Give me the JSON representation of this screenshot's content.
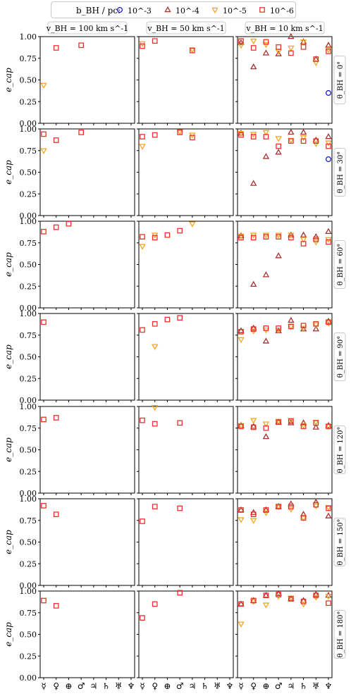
{
  "legend": {
    "title": "b_BH / pc:",
    "entries": [
      {
        "label": "10^{-3}",
        "marker": "circle",
        "color": "#1f1fcc"
      },
      {
        "label": "10^{-4}",
        "marker": "triangle-up",
        "color": "#a83232"
      },
      {
        "label": "10^{-5}",
        "marker": "triangle-down",
        "color": "#f5a623"
      },
      {
        "label": "10^{-6}",
        "marker": "square",
        "color": "#e8332a"
      }
    ]
  },
  "column_titles": [
    "v_BH = 100 km s^-1",
    "v_BH = 50 km s^-1",
    "v_BH = 10 km s^-1"
  ],
  "row_titles": [
    "θ_BH = 0°",
    "θ_BH = 30°",
    "θ_BH = 60°",
    "θ_BH = 90°",
    "θ_BH = 120°",
    "θ_BH = 150°",
    "θ_BH = 180°"
  ],
  "ylabel": "e_cap",
  "yticks": [
    "0.00",
    "0.25",
    "0.50",
    "0.75",
    "1.00"
  ],
  "xtick_symbols": [
    "☿",
    "♀",
    "⊕",
    "♂",
    "♃",
    "♄",
    "♅",
    "♆"
  ],
  "chart_data": {
    "type": "scatter",
    "grid": false,
    "ylim": [
      0,
      1
    ],
    "x": [
      "Mercury",
      "Venus",
      "Earth",
      "Mars",
      "Jupiter",
      "Saturn",
      "Uranus",
      "Neptune"
    ],
    "series_names": [
      "10^-3",
      "10^-4",
      "10^-5",
      "10^-6"
    ],
    "panels": [
      {
        "row": 0,
        "col": 0,
        "series": {
          "1e-3": [
            null,
            null,
            null,
            null,
            null,
            null,
            null,
            null
          ],
          "1e-4": [
            null,
            null,
            null,
            null,
            null,
            null,
            null,
            null
          ],
          "1e-5": [
            0.44,
            null,
            null,
            null,
            null,
            null,
            null,
            null
          ],
          "1e-6": [
            null,
            0.87,
            null,
            0.9,
            null,
            null,
            null,
            null
          ]
        }
      },
      {
        "row": 0,
        "col": 1,
        "series": {
          "1e-3": [
            null,
            null,
            null,
            null,
            null,
            null,
            null,
            null
          ],
          "1e-4": [
            null,
            null,
            null,
            null,
            null,
            null,
            null,
            null
          ],
          "1e-5": [
            0.92,
            null,
            null,
            null,
            0.85,
            null,
            null,
            null
          ],
          "1e-6": [
            0.89,
            0.95,
            null,
            null,
            0.84,
            null,
            null,
            null
          ]
        }
      },
      {
        "row": 0,
        "col": 2,
        "series": {
          "1e-3": [
            null,
            null,
            null,
            null,
            null,
            null,
            null,
            0.35
          ],
          "1e-4": [
            0.93,
            0.65,
            0.81,
            0.8,
            1.0,
            0.94,
            0.74,
            0.9
          ],
          "1e-5": [
            0.9,
            0.95,
            0.91,
            0.83,
            0.87,
            0.94,
            0.7,
            0.85
          ],
          "1e-6": [
            0.95,
            0.87,
            0.94,
            0.88,
            0.81,
            0.88,
            0.74,
            0.83
          ]
        }
      },
      {
        "row": 1,
        "col": 0,
        "series": {
          "1e-3": [
            null,
            null,
            null,
            null,
            null,
            null,
            null,
            null
          ],
          "1e-4": [
            null,
            null,
            null,
            null,
            null,
            null,
            null,
            null
          ],
          "1e-5": [
            0.75,
            null,
            null,
            null,
            null,
            null,
            null,
            null
          ],
          "1e-6": [
            0.94,
            0.87,
            null,
            0.96,
            null,
            null,
            null,
            null
          ]
        }
      },
      {
        "row": 1,
        "col": 1,
        "series": {
          "1e-3": [
            null,
            null,
            null,
            null,
            null,
            null,
            null,
            null
          ],
          "1e-4": [
            null,
            null,
            null,
            null,
            null,
            null,
            null,
            null
          ],
          "1e-5": [
            0.8,
            null,
            null,
            0.97,
            0.93,
            null,
            null,
            null
          ],
          "1e-6": [
            0.91,
            0.93,
            null,
            0.96,
            0.9,
            null,
            null,
            null
          ]
        }
      },
      {
        "row": 1,
        "col": 2,
        "series": {
          "1e-3": [
            null,
            null,
            null,
            null,
            null,
            null,
            null,
            0.65
          ],
          "1e-4": [
            0.95,
            0.37,
            0.68,
            0.73,
            0.96,
            0.96,
            0.87,
            0.91
          ],
          "1e-5": [
            0.95,
            0.94,
            0.96,
            0.89,
            0.87,
            0.9,
            0.83,
            0.84
          ],
          "1e-6": [
            0.93,
            0.91,
            0.91,
            0.8,
            0.86,
            0.86,
            0.86,
            0.8
          ]
        }
      },
      {
        "row": 2,
        "col": 0,
        "series": {
          "1e-3": [
            null,
            null,
            null,
            null,
            null,
            null,
            null,
            null
          ],
          "1e-4": [
            null,
            null,
            null,
            null,
            null,
            null,
            null,
            null
          ],
          "1e-5": [
            null,
            null,
            null,
            null,
            null,
            null,
            null,
            null
          ],
          "1e-6": [
            0.88,
            0.93,
            0.97,
            null,
            null,
            null,
            null,
            null
          ]
        }
      },
      {
        "row": 2,
        "col": 1,
        "series": {
          "1e-3": [
            null,
            null,
            null,
            null,
            null,
            null,
            null,
            null
          ],
          "1e-4": [
            null,
            null,
            null,
            null,
            null,
            null,
            null,
            null
          ],
          "1e-5": [
            0.71,
            0.84,
            null,
            null,
            0.97,
            null,
            null,
            null
          ],
          "1e-6": [
            0.82,
            0.81,
            0.84,
            0.89,
            null,
            null,
            null,
            null
          ]
        }
      },
      {
        "row": 2,
        "col": 2,
        "series": {
          "1e-3": [
            null,
            null,
            null,
            null,
            null,
            null,
            null,
            null
          ],
          "1e-4": [
            0.83,
            0.27,
            0.38,
            0.6,
            0.84,
            0.84,
            0.82,
            0.88
          ],
          "1e-5": [
            0.83,
            0.84,
            0.84,
            0.84,
            0.84,
            0.79,
            0.76,
            0.79
          ],
          "1e-6": [
            0.81,
            0.81,
            0.82,
            0.82,
            0.81,
            0.74,
            0.79,
            0.76
          ]
        }
      },
      {
        "row": 3,
        "col": 0,
        "series": {
          "1e-3": [
            null,
            null,
            null,
            null,
            null,
            null,
            null,
            null
          ],
          "1e-4": [
            null,
            null,
            null,
            null,
            null,
            null,
            null,
            null
          ],
          "1e-5": [
            null,
            null,
            null,
            null,
            null,
            null,
            null,
            null
          ],
          "1e-6": [
            0.9,
            null,
            null,
            null,
            null,
            null,
            null,
            null
          ]
        }
      },
      {
        "row": 3,
        "col": 1,
        "series": {
          "1e-3": [
            null,
            null,
            null,
            null,
            null,
            null,
            null,
            null
          ],
          "1e-4": [
            null,
            null,
            null,
            null,
            null,
            null,
            null,
            null
          ],
          "1e-5": [
            null,
            0.62,
            null,
            null,
            null,
            null,
            null,
            null
          ],
          "1e-6": [
            0.81,
            0.88,
            0.93,
            0.95,
            null,
            null,
            null,
            null
          ]
        }
      },
      {
        "row": 3,
        "col": 2,
        "series": {
          "1e-3": [
            null,
            null,
            null,
            null,
            null,
            null,
            null,
            null
          ],
          "1e-4": [
            0.8,
            0.83,
            0.68,
            0.8,
            0.92,
            0.82,
            0.82,
            0.91
          ],
          "1e-5": [
            0.7,
            0.8,
            0.81,
            0.81,
            0.85,
            0.83,
            0.87,
            0.89
          ],
          "1e-6": [
            0.79,
            0.82,
            0.83,
            0.83,
            0.85,
            0.86,
            0.88,
            0.9
          ]
        }
      },
      {
        "row": 4,
        "col": 0,
        "series": {
          "1e-3": [
            null,
            null,
            null,
            null,
            null,
            null,
            null,
            null
          ],
          "1e-4": [
            null,
            null,
            null,
            null,
            null,
            null,
            null,
            null
          ],
          "1e-5": [
            null,
            null,
            null,
            null,
            null,
            null,
            null,
            null
          ],
          "1e-6": [
            0.85,
            0.87,
            null,
            null,
            null,
            null,
            null,
            null
          ]
        }
      },
      {
        "row": 4,
        "col": 1,
        "series": {
          "1e-3": [
            null,
            null,
            null,
            null,
            null,
            null,
            null,
            null
          ],
          "1e-4": [
            null,
            null,
            null,
            null,
            null,
            null,
            null,
            null
          ],
          "1e-5": [
            null,
            0.99,
            null,
            null,
            null,
            null,
            null,
            null
          ],
          "1e-6": [
            0.84,
            0.8,
            null,
            0.81,
            null,
            null,
            null,
            null
          ]
        }
      },
      {
        "row": 4,
        "col": 2,
        "series": {
          "1e-3": [
            null,
            null,
            null,
            null,
            null,
            null,
            null,
            null
          ],
          "1e-4": [
            0.78,
            0.77,
            0.65,
            0.82,
            0.81,
            0.81,
            0.76,
            0.78
          ],
          "1e-5": [
            0.78,
            0.84,
            0.8,
            0.83,
            0.84,
            0.78,
            0.82,
            0.77
          ],
          "1e-6": [
            0.77,
            0.76,
            0.75,
            0.82,
            0.83,
            0.77,
            0.81,
            0.77
          ]
        }
      },
      {
        "row": 5,
        "col": 0,
        "series": {
          "1e-3": [
            null,
            null,
            null,
            null,
            null,
            null,
            null,
            null
          ],
          "1e-4": [
            null,
            null,
            null,
            null,
            null,
            null,
            null,
            null
          ],
          "1e-5": [
            null,
            null,
            null,
            null,
            null,
            null,
            null,
            null
          ],
          "1e-6": [
            0.92,
            0.82,
            null,
            null,
            null,
            null,
            null,
            null
          ]
        }
      },
      {
        "row": 5,
        "col": 1,
        "series": {
          "1e-3": [
            null,
            null,
            null,
            null,
            null,
            null,
            null,
            null
          ],
          "1e-4": [
            null,
            null,
            null,
            null,
            null,
            null,
            null,
            null
          ],
          "1e-5": [
            null,
            null,
            null,
            null,
            null,
            null,
            null,
            null
          ],
          "1e-6": [
            0.74,
            0.91,
            null,
            0.89,
            null,
            null,
            null,
            null
          ]
        }
      },
      {
        "row": 5,
        "col": 2,
        "series": {
          "1e-3": [
            null,
            null,
            null,
            null,
            null,
            null,
            null,
            null
          ],
          "1e-4": [
            0.87,
            0.84,
            0.87,
            0.91,
            0.94,
            0.82,
            0.96,
            0.8
          ],
          "1e-5": [
            0.76,
            0.75,
            0.84,
            0.91,
            0.88,
            0.78,
            0.92,
            0.9
          ],
          "1e-6": [
            0.87,
            0.82,
            0.87,
            0.91,
            0.91,
            0.78,
            0.93,
            0.89
          ]
        }
      },
      {
        "row": 6,
        "col": 0,
        "series": {
          "1e-3": [
            null,
            null,
            null,
            null,
            null,
            null,
            null,
            null
          ],
          "1e-4": [
            null,
            null,
            null,
            null,
            null,
            null,
            null,
            null
          ],
          "1e-5": [
            null,
            null,
            null,
            null,
            null,
            null,
            null,
            null
          ],
          "1e-6": [
            0.89,
            0.83,
            null,
            null,
            null,
            null,
            null,
            null
          ]
        }
      },
      {
        "row": 6,
        "col": 1,
        "series": {
          "1e-3": [
            null,
            null,
            null,
            null,
            null,
            null,
            null,
            null
          ],
          "1e-4": [
            null,
            null,
            null,
            null,
            null,
            null,
            null,
            null
          ],
          "1e-5": [
            null,
            null,
            null,
            null,
            null,
            null,
            null,
            null
          ],
          "1e-6": [
            0.69,
            0.85,
            null,
            0.98,
            null,
            null,
            null,
            null
          ]
        }
      },
      {
        "row": 6,
        "col": 2,
        "series": {
          "1e-3": [
            null,
            null,
            null,
            null,
            null,
            null,
            null,
            null
          ],
          "1e-4": [
            0.85,
            0.89,
            0.95,
            0.97,
            0.91,
            0.89,
            0.96,
            0.95
          ],
          "1e-5": [
            0.62,
            0.88,
            0.84,
            0.94,
            0.92,
            0.85,
            0.93,
            0.94
          ],
          "1e-6": [
            0.85,
            0.89,
            0.95,
            0.96,
            0.91,
            0.88,
            0.95,
            0.86
          ]
        }
      }
    ]
  }
}
